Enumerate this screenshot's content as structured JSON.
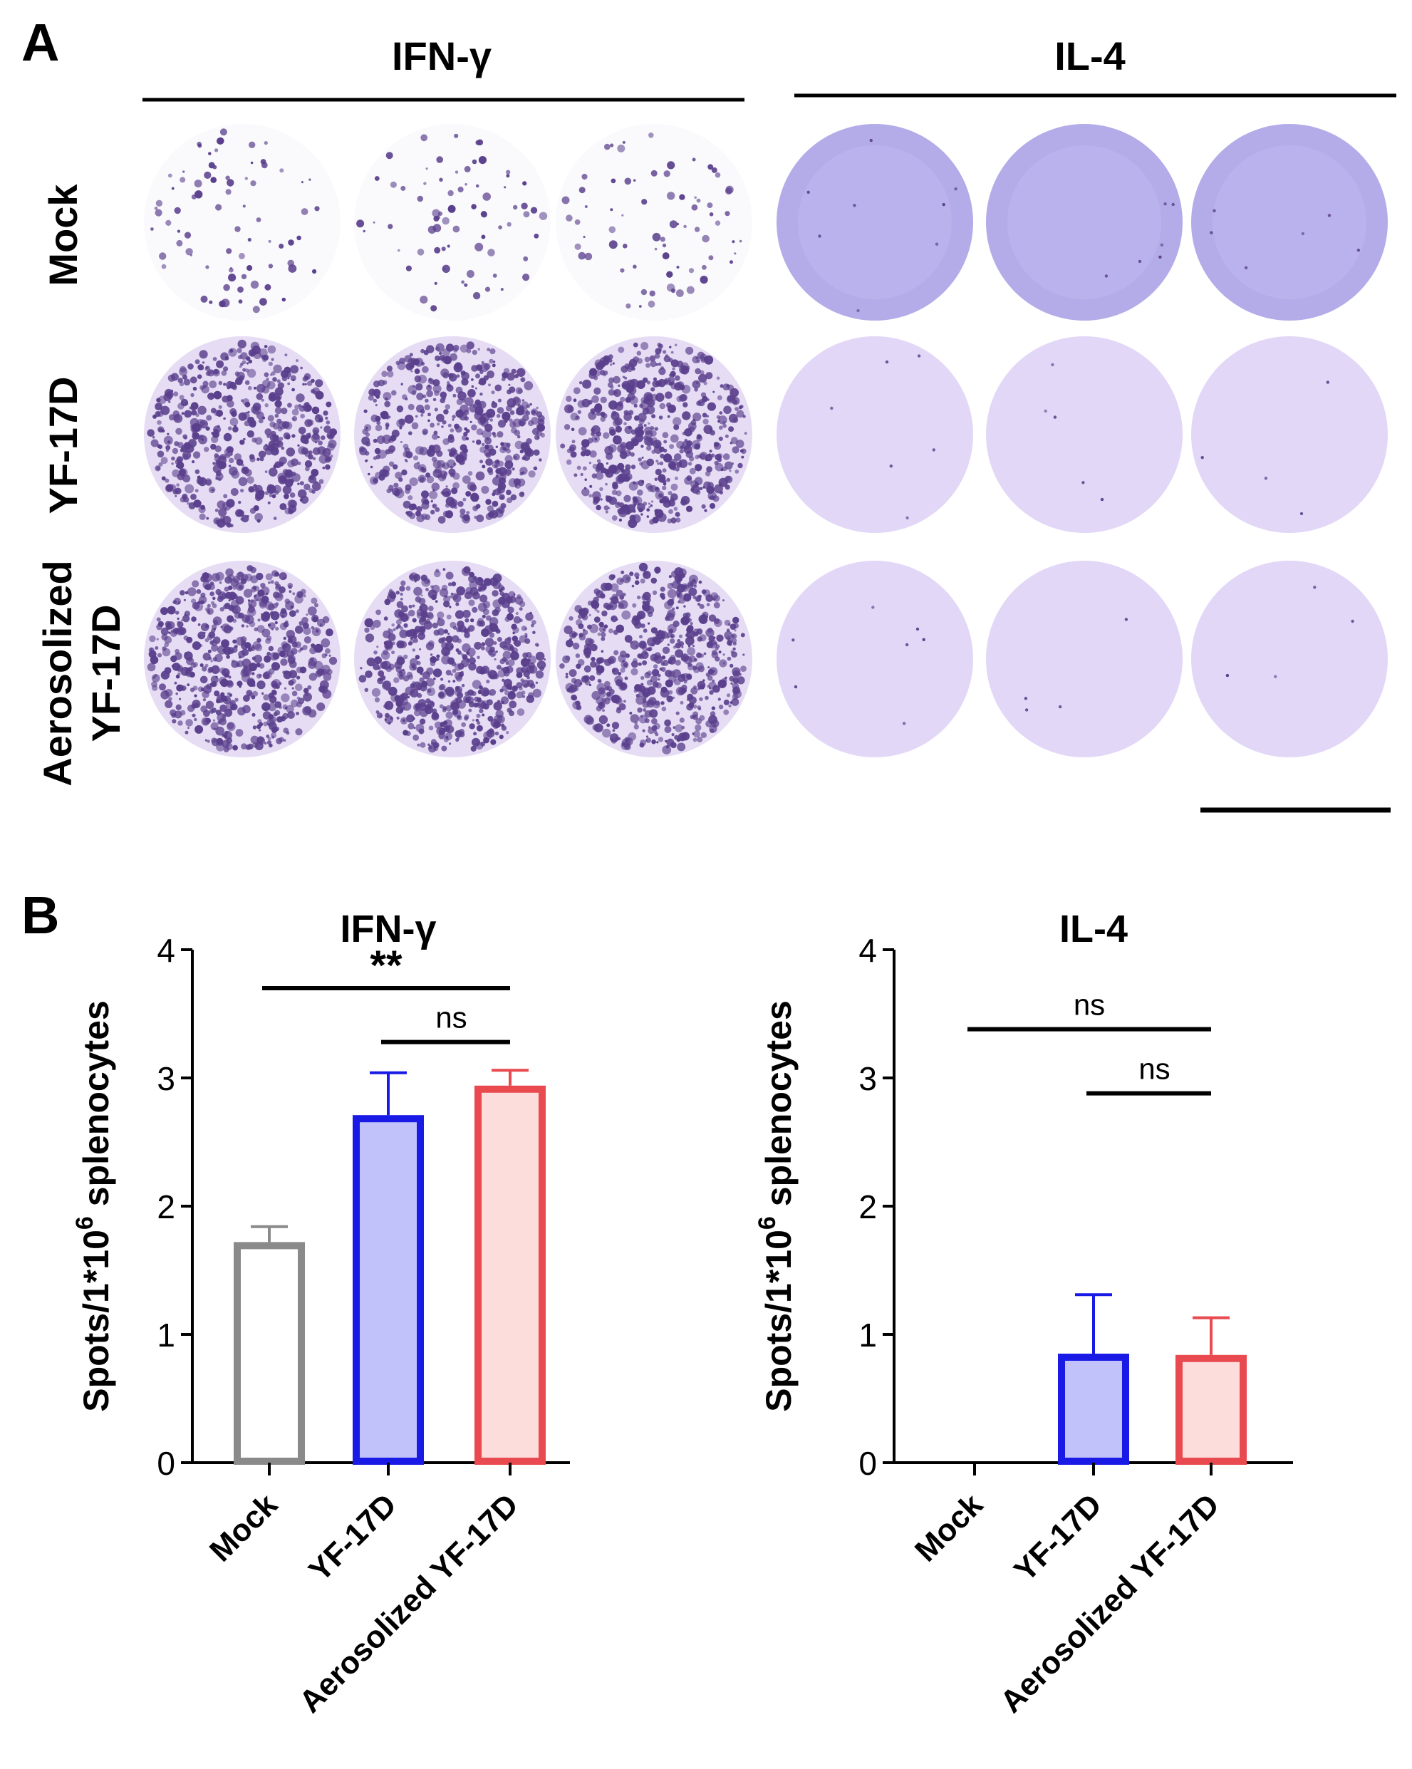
{
  "panel_a": {
    "label": "A",
    "column_groups": [
      {
        "title": "IFN-γ"
      },
      {
        "title": "IL-4"
      }
    ],
    "row_labels": [
      {
        "lines": [
          "Mock"
        ]
      },
      {
        "lines": [
          "YF-17D"
        ]
      },
      {
        "lines": [
          "Aerosolized",
          "YF-17D"
        ]
      }
    ],
    "spot_density": {
      "IFN-γ": [
        [
          0.06,
          0.05,
          0.05
        ],
        [
          0.75,
          0.78,
          0.8
        ],
        [
          0.88,
          0.9,
          0.86
        ]
      ],
      "IL-4": [
        [
          0.0,
          0.0,
          0.0
        ],
        [
          0.01,
          0.01,
          0.01
        ],
        [
          0.01,
          0.01,
          0.01
        ]
      ]
    },
    "colors": {
      "spot": "#5a3f8c",
      "well_il4": "#b3ace8",
      "well_il4_light": "#e2d7f7",
      "well_ifn_dense": "#e6ddf5",
      "well_ifn_sparse": "#fafafd"
    }
  },
  "panel_b": {
    "label": "B"
  },
  "chart_data": [
    {
      "type": "bar",
      "title": "IFN-γ",
      "ylabel": "Spots/1*10^6 splenocytes",
      "ylabel_parts": [
        "Spots/1*10",
        "6",
        " splenocytes"
      ],
      "categories": [
        "Mock",
        "YF-17D",
        "Aerosolized YF-17D"
      ],
      "values": [
        1.72,
        2.71,
        2.94
      ],
      "errors": [
        0.12,
        0.33,
        0.12
      ],
      "ylim": [
        0,
        4
      ],
      "yticks": [
        "0",
        "1",
        "2",
        "3",
        "4"
      ],
      "bar_colors": [
        {
          "stroke": "#8a8a8a",
          "fill": "#ffffff"
        },
        {
          "stroke": "#1a1ae6",
          "fill": "#c2c2fb"
        },
        {
          "stroke": "#e84a4f",
          "fill": "#fddcdc"
        }
      ],
      "significance": [
        {
          "from": 0,
          "to": 2,
          "y": 3.7,
          "label": "**"
        },
        {
          "from": 1,
          "to": 2,
          "y": 3.28,
          "label": "ns"
        }
      ]
    },
    {
      "type": "bar",
      "title": "IL-4",
      "ylabel": "Spots/1*10^6 splenocytes",
      "ylabel_parts": [
        "Spots/1*10",
        "6",
        " splenocytes"
      ],
      "categories": [
        "Mock",
        "YF-17D",
        "Aerosolized YF-17D"
      ],
      "values": [
        0,
        0.85,
        0.84
      ],
      "errors": [
        0,
        0.46,
        0.29
      ],
      "ylim": [
        0,
        4
      ],
      "yticks": [
        "0",
        "1",
        "2",
        "3",
        "4"
      ],
      "bar_colors": [
        {
          "stroke": "#8a8a8a",
          "fill": "#ffffff"
        },
        {
          "stroke": "#1a1ae6",
          "fill": "#c2c2fb"
        },
        {
          "stroke": "#e84a4f",
          "fill": "#fddcdc"
        }
      ],
      "significance": [
        {
          "from": 0,
          "to": 2,
          "y": 3.38,
          "label": "ns"
        },
        {
          "from": 1,
          "to": 2,
          "y": 2.88,
          "label": "ns"
        }
      ]
    }
  ]
}
